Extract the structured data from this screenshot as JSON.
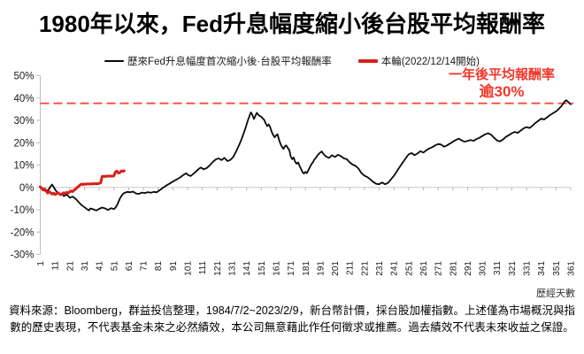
{
  "title": "1980年以來，Fed升息幅度縮小後台股平均報酬率",
  "annotation": {
    "line1": "一年後平均報酬率",
    "line2": "逾30%",
    "color": "#f1382c"
  },
  "footer_note": "資料來源：Bloomberg，群益投信整理，1984/7/2~2023/2/9，新台幣計價，採台股加權指數。上述僅為市場概況與指數的歷史表現，不代表基金未來之必然績效，本公司無意藉此作任何徵求或推薦。過去績效不代表未來收益之保證。",
  "chart_data": {
    "type": "line",
    "title": "1980年以來，Fed升息幅度縮小後台股平均報酬率",
    "x_axis_title": "歷經天數",
    "xlabel": "歷經天數",
    "ylabel": "",
    "x_range": [
      1,
      361
    ],
    "ylim": [
      -30,
      50
    ],
    "grid": "only-zero-line",
    "legend_position": "top-center",
    "y_tick_labels": [
      "50%",
      "40%",
      "30%",
      "20%",
      "10%",
      "0%",
      "-10%",
      "-20%",
      "-30%"
    ],
    "x_tick_labels": [
      "1",
      "11",
      "21",
      "31",
      "41",
      "51",
      "61",
      "71",
      "81",
      "91",
      "101",
      "111",
      "121",
      "131",
      "141",
      "151",
      "161",
      "171",
      "181",
      "191",
      "201",
      "211",
      "221",
      "231",
      "241",
      "251",
      "261",
      "271",
      "281",
      "291",
      "301",
      "311",
      "321",
      "331",
      "341",
      "351",
      "361"
    ],
    "reference_line": {
      "value": 37.6,
      "style": "dashed",
      "color": "#f4564a"
    },
    "series": [
      {
        "name": "歷來Fed升息幅度首次縮小後·台股平均報酬率",
        "color": "#0a0a0a",
        "width": 1.8,
        "points": [
          [
            1,
            0
          ],
          [
            3,
            -0.9
          ],
          [
            5,
            -1.9
          ],
          [
            7,
            -0.7
          ],
          [
            8,
            0.5
          ],
          [
            9,
            1.3
          ],
          [
            10,
            0.3
          ],
          [
            11,
            -0.9
          ],
          [
            13,
            -2.7
          ],
          [
            15,
            -3.4
          ],
          [
            16,
            -2.7
          ],
          [
            17,
            -3.9
          ],
          [
            19,
            -3.2
          ],
          [
            21,
            -4.6
          ],
          [
            23,
            -4.1
          ],
          [
            25,
            -5.1
          ],
          [
            27,
            -6.5
          ],
          [
            29,
            -7.9
          ],
          [
            31,
            -8.9
          ],
          [
            33,
            -9.9
          ],
          [
            34,
            -10.3
          ],
          [
            35,
            -9.4
          ],
          [
            37,
            -9.8
          ],
          [
            39,
            -10.3
          ],
          [
            41,
            -9.6
          ],
          [
            43,
            -9
          ],
          [
            45,
            -9.4
          ],
          [
            47,
            -10.1
          ],
          [
            49,
            -9.3
          ],
          [
            51,
            -9.7
          ],
          [
            52,
            -9.1
          ],
          [
            53,
            -8.1
          ],
          [
            54,
            -6.6
          ],
          [
            55,
            -5.1
          ],
          [
            56,
            -3.9
          ],
          [
            57,
            -3
          ],
          [
            58,
            -2.5
          ],
          [
            60,
            -2
          ],
          [
            62,
            -2.2
          ],
          [
            64,
            -1.9
          ],
          [
            66,
            -2.7
          ],
          [
            68,
            -2.9
          ],
          [
            70,
            -2.3
          ],
          [
            72,
            -2.5
          ],
          [
            74,
            -2.1
          ],
          [
            76,
            -2.4
          ],
          [
            78,
            -2
          ],
          [
            80,
            -2.2
          ],
          [
            82,
            -1.3
          ],
          [
            84,
            -0.3
          ],
          [
            86,
            0.6
          ],
          [
            88,
            1.4
          ],
          [
            90,
            2.2
          ],
          [
            92,
            3
          ],
          [
            94,
            3.7
          ],
          [
            96,
            4.5
          ],
          [
            98,
            5.5
          ],
          [
            100,
            6.3
          ],
          [
            101,
            5.7
          ],
          [
            103,
            5.1
          ],
          [
            105,
            6.1
          ],
          [
            107,
            7.3
          ],
          [
            109,
            8.5
          ],
          [
            110,
            8.9
          ],
          [
            112,
            8.1
          ],
          [
            114,
            8.7
          ],
          [
            116,
            9.9
          ],
          [
            118,
            11.3
          ],
          [
            120,
            12.5
          ],
          [
            122,
            13
          ],
          [
            124,
            12.2
          ],
          [
            126,
            13.2
          ],
          [
            128,
            11.8
          ],
          [
            130,
            12.3
          ],
          [
            132,
            13.7
          ],
          [
            134,
            16.2
          ],
          [
            136,
            19
          ],
          [
            138,
            22.2
          ],
          [
            140,
            26
          ],
          [
            141,
            28
          ],
          [
            142,
            30.2
          ],
          [
            143,
            32
          ],
          [
            144,
            33.6
          ],
          [
            145,
            32.4
          ],
          [
            146,
            30.6
          ],
          [
            147,
            32
          ],
          [
            148,
            33.4
          ],
          [
            149,
            32.4
          ],
          [
            151,
            31.6
          ],
          [
            153,
            30.2
          ],
          [
            154,
            28.6
          ],
          [
            155,
            27.4
          ],
          [
            156,
            28.2
          ],
          [
            157,
            27
          ],
          [
            158,
            25
          ],
          [
            159,
            23.6
          ],
          [
            160,
            22.4
          ],
          [
            161,
            23.2
          ],
          [
            162,
            23.8
          ],
          [
            163,
            21.4
          ],
          [
            164,
            19.6
          ],
          [
            165,
            18.2
          ],
          [
            166,
            17.2
          ],
          [
            167,
            18.4
          ],
          [
            168,
            18.8
          ],
          [
            169,
            17.6
          ],
          [
            170,
            16.8
          ],
          [
            171,
            13.8
          ],
          [
            172,
            12.6
          ],
          [
            173,
            13.4
          ],
          [
            174,
            11.4
          ],
          [
            175,
            10.6
          ],
          [
            176,
            11.2
          ],
          [
            177,
            9.6
          ],
          [
            178,
            8.2
          ],
          [
            179,
            6.8
          ],
          [
            180,
            6.2
          ],
          [
            181,
            7
          ],
          [
            182,
            6.4
          ],
          [
            183,
            7.8
          ],
          [
            184,
            9
          ],
          [
            185,
            10.4
          ],
          [
            186,
            11.2
          ],
          [
            187,
            12.4
          ],
          [
            188,
            13.2
          ],
          [
            189,
            14.2
          ],
          [
            190,
            15
          ],
          [
            191,
            15.6
          ],
          [
            192,
            16.1
          ],
          [
            193,
            15.2
          ],
          [
            194,
            14.4
          ],
          [
            195,
            13.8
          ],
          [
            197,
            13.2
          ],
          [
            199,
            14.4
          ],
          [
            201,
            13.6
          ],
          [
            203,
            14.6
          ],
          [
            205,
            14
          ],
          [
            207,
            13
          ],
          [
            209,
            12.6
          ],
          [
            211,
            11.2
          ],
          [
            213,
            10.2
          ],
          [
            215,
            9.6
          ],
          [
            217,
            8.4
          ],
          [
            219,
            6.4
          ],
          [
            221,
            5.2
          ],
          [
            223,
            4.6
          ],
          [
            225,
            3.6
          ],
          [
            227,
            2.4
          ],
          [
            229,
            1.6
          ],
          [
            231,
            1.4
          ],
          [
            233,
            2.2
          ],
          [
            235,
            1.4
          ],
          [
            237,
            2
          ],
          [
            239,
            3.6
          ],
          [
            241,
            5.2
          ],
          [
            243,
            7.2
          ],
          [
            245,
            9.2
          ],
          [
            247,
            11.2
          ],
          [
            249,
            13
          ],
          [
            251,
            14.8
          ],
          [
            253,
            15.4
          ],
          [
            255,
            14.4
          ],
          [
            257,
            15.2
          ],
          [
            259,
            16.2
          ],
          [
            261,
            15.6
          ],
          [
            263,
            16.6
          ],
          [
            265,
            17.4
          ],
          [
            267,
            18
          ],
          [
            269,
            18.8
          ],
          [
            271,
            19.4
          ],
          [
            273,
            19.2
          ],
          [
            275,
            18.2
          ],
          [
            277,
            18.8
          ],
          [
            279,
            19.6
          ],
          [
            281,
            20.4
          ],
          [
            283,
            21.2
          ],
          [
            285,
            21.8
          ],
          [
            287,
            21
          ],
          [
            289,
            20.4
          ],
          [
            291,
            20.8
          ],
          [
            293,
            21.2
          ],
          [
            295,
            20.8
          ],
          [
            297,
            21.6
          ],
          [
            299,
            22.2
          ],
          [
            301,
            23
          ],
          [
            303,
            23.8
          ],
          [
            305,
            24.2
          ],
          [
            307,
            23.6
          ],
          [
            309,
            22.2
          ],
          [
            311,
            21
          ],
          [
            313,
            20.6
          ],
          [
            315,
            21.4
          ],
          [
            317,
            22.6
          ],
          [
            319,
            23.4
          ],
          [
            321,
            24.2
          ],
          [
            323,
            24.8
          ],
          [
            325,
            24.4
          ],
          [
            327,
            25.4
          ],
          [
            329,
            26.4
          ],
          [
            331,
            27
          ],
          [
            333,
            26.6
          ],
          [
            335,
            27.6
          ],
          [
            337,
            28.8
          ],
          [
            339,
            29.8
          ],
          [
            341,
            30.8
          ],
          [
            343,
            30.4
          ],
          [
            345,
            31.4
          ],
          [
            347,
            32.4
          ],
          [
            349,
            33.2
          ],
          [
            351,
            34
          ],
          [
            353,
            35.2
          ],
          [
            355,
            36.6
          ],
          [
            356,
            37.6
          ],
          [
            357,
            38.6
          ],
          [
            358,
            39
          ],
          [
            359,
            38.4
          ],
          [
            360,
            37.8
          ],
          [
            361,
            37.2
          ]
        ]
      },
      {
        "name": "本輪(2022/12/14開始)",
        "color": "#d7201a",
        "width": 3,
        "points": [
          [
            1,
            0.3
          ],
          [
            2,
            -0.4
          ],
          [
            3,
            -1.2
          ],
          [
            4,
            -0.7
          ],
          [
            5,
            -1.6
          ],
          [
            6,
            -2.5
          ],
          [
            7,
            -1.9
          ],
          [
            8,
            -2.3
          ],
          [
            9,
            -3
          ],
          [
            10,
            -2.6
          ],
          [
            11,
            -3.2
          ],
          [
            12,
            -2.8
          ],
          [
            13,
            -2.4
          ],
          [
            14,
            -2.9
          ],
          [
            15,
            -3.3
          ],
          [
            16,
            -2.8
          ],
          [
            17,
            -2.4
          ],
          [
            18,
            -2.7
          ],
          [
            19,
            -2.2
          ],
          [
            20,
            -2.5
          ],
          [
            21,
            -2
          ],
          [
            22,
            -1.6
          ],
          [
            23,
            -1.9
          ],
          [
            24,
            -1.2
          ],
          [
            25,
            -0.7
          ],
          [
            26,
            -0.1
          ],
          [
            27,
            0.5
          ],
          [
            28,
            1.1
          ],
          [
            29,
            1.5
          ],
          [
            30,
            1.3
          ],
          [
            31,
            1.5
          ],
          [
            32,
            1.4
          ],
          [
            33,
            1.6
          ],
          [
            34,
            1.5
          ],
          [
            35,
            1.6
          ],
          [
            36,
            1.5
          ],
          [
            37,
            1.7
          ],
          [
            38,
            1.6
          ],
          [
            39,
            1.7
          ],
          [
            40,
            1.6
          ],
          [
            41,
            1.8
          ],
          [
            42,
            2
          ],
          [
            43,
            4.9
          ],
          [
            44,
            5
          ],
          [
            45,
            4.9
          ],
          [
            46,
            5
          ],
          [
            47,
            5.1
          ],
          [
            48,
            5
          ],
          [
            49,
            5.1
          ],
          [
            50,
            5
          ],
          [
            51,
            5.2
          ],
          [
            52,
            6.9
          ],
          [
            53,
            7.3
          ],
          [
            54,
            6.4
          ],
          [
            55,
            6.6
          ],
          [
            56,
            7.4
          ],
          [
            57,
            7.2
          ],
          [
            58,
            7.4
          ]
        ]
      }
    ]
  }
}
